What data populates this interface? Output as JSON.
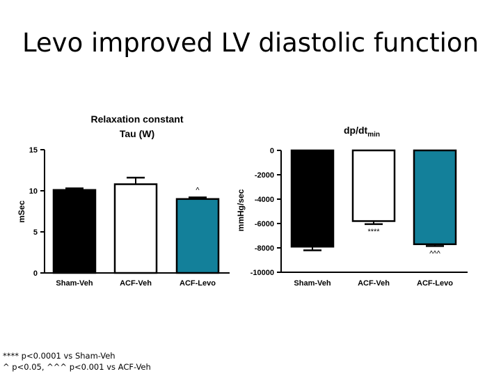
{
  "slide": {
    "title": "Levo improved LV diastolic function",
    "footnotes": [
      "**** p<0.0001 vs Sham-Veh",
      "^ p<0.05, ^^^ p<0.001 vs ACF-Veh"
    ]
  },
  "colors": {
    "black": "#000000",
    "white": "#ffffff",
    "teal": "#13809a"
  },
  "chart_data": [
    {
      "type": "bar",
      "title": "Relaxation constant",
      "subtitle": "Tau (W)",
      "ylabel": "mSec",
      "xlabel": "",
      "categories": [
        "Sham-Veh",
        "ACF-Veh",
        "ACF-Levo"
      ],
      "values": [
        10.1,
        10.8,
        9.0
      ],
      "errors": [
        0.2,
        0.8,
        0.2
      ],
      "bar_colors": [
        "#000000",
        "#ffffff",
        "#13809a"
      ],
      "annotations": [
        "",
        "",
        "^"
      ],
      "ylim": [
        0,
        15
      ],
      "yticks": [
        0,
        5,
        10,
        15
      ],
      "grid": false,
      "legend": "none"
    },
    {
      "type": "bar",
      "title": "dp/dt",
      "title_subscript": "min",
      "ylabel": "mmHg/sec",
      "xlabel": "",
      "categories": [
        "Sham-Veh",
        "ACF-Veh",
        "ACF-Levo"
      ],
      "values": [
        -7900,
        -5800,
        -7700
      ],
      "errors": [
        300,
        250,
        150
      ],
      "bar_colors": [
        "#000000",
        "#ffffff",
        "#13809a"
      ],
      "annotations": [
        "",
        "****",
        "^^^"
      ],
      "ylim": [
        -10000,
        0
      ],
      "yticks": [
        0,
        -2000,
        -4000,
        -6000,
        -8000,
        -10000
      ],
      "grid": false,
      "legend": "none"
    }
  ]
}
